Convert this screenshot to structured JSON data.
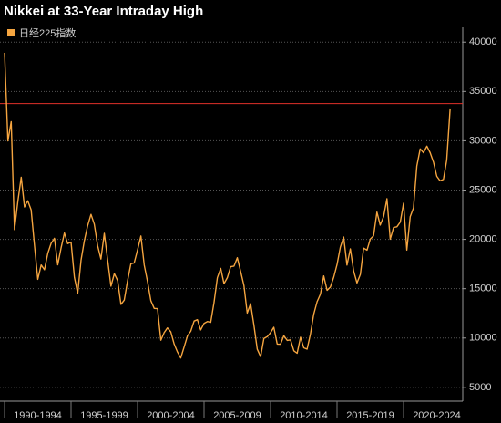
{
  "chart_data": {
    "type": "line",
    "title": "Nikkei at 33-Year Intraday High",
    "categories": [
      "1990-1994",
      "1995-1999",
      "2000-2004",
      "2005-2009",
      "2010-2014",
      "2015-2019",
      "2020-2024"
    ],
    "series": [
      {
        "name": "日经225指数",
        "color": "#f5a540",
        "values": [
          [
            38916,
            29980,
            31940,
            20984,
            23849,
            26292,
            23291,
            23916,
            22984,
            19346,
            15951,
            17399,
            16925,
            18591,
            19590,
            20106,
            17417,
            19112,
            20644,
            19564
          ],
          [
            19723,
            16140,
            14517,
            17913,
            19868,
            21407,
            22531,
            21556,
            19361,
            18003,
            20605,
            17888,
            15259,
            16527,
            15830,
            13406,
            13842,
            15837,
            17530,
            17605
          ],
          [
            18934,
            20337,
            17411,
            15747,
            13786,
            12999,
            12969,
            9775,
            10543,
            11025,
            10622,
            9383,
            8579,
            7973,
            9083,
            10219,
            10677,
            11715,
            11859,
            10824
          ],
          [
            11489,
            11669,
            11584,
            13574,
            16111,
            17060,
            15505,
            16128,
            17226,
            17288,
            18138,
            16786,
            15308,
            12526,
            13481,
            11260,
            8860,
            8110,
            9958,
            10133
          ],
          [
            10546,
            11090,
            9383,
            9369,
            10229,
            9755,
            9816,
            8700,
            8455,
            10084,
            9007,
            8870,
            10395,
            12398,
            13677,
            14456,
            16291,
            14828,
            15162,
            16174
          ],
          [
            17451,
            19207,
            20236,
            17388,
            19034,
            16759,
            15576,
            16450,
            19114,
            18909,
            20033,
            20356,
            22765,
            21454,
            22305,
            24120,
            20015,
            21206,
            21276,
            21756
          ],
          [
            23657,
            18917,
            22288,
            23185,
            27444,
            29179,
            28792,
            29453,
            28792,
            27821,
            26393,
            25937,
            26095,
            28041,
            33189
          ]
        ]
      }
    ],
    "reference_line": {
      "value": 33772,
      "color": "#e0302a"
    },
    "ylim": [
      3600,
      41500
    ],
    "yticks": [
      5000,
      10000,
      15000,
      20000,
      25000,
      30000,
      35000,
      40000
    ],
    "grid": true
  }
}
